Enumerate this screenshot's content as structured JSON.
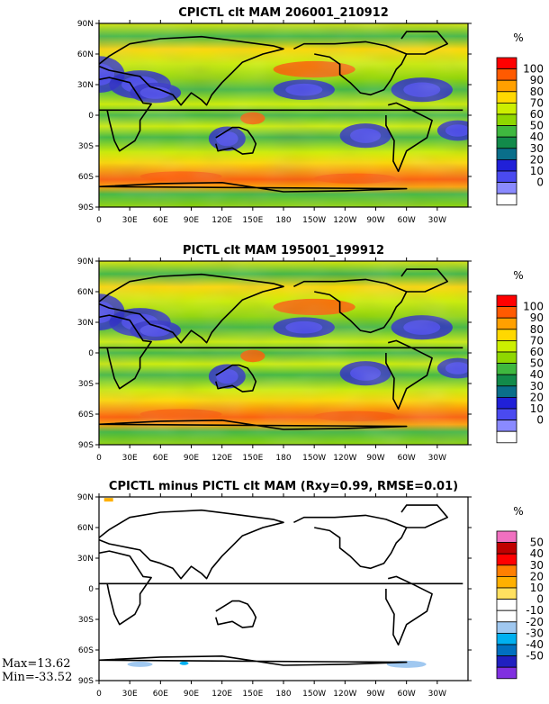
{
  "figure": {
    "stats_max": "Max=13.62",
    "stats_min": "Min=-33.52"
  },
  "chart_data": [
    {
      "type": "heatmap",
      "title": "CPICTL clt MAM 206001_210912",
      "unit": "%",
      "lon_ticks": [
        "0",
        "30E",
        "60E",
        "90E",
        "120E",
        "150E",
        "180",
        "150W",
        "120W",
        "90W",
        "60W",
        "30W"
      ],
      "lat_ticks": [
        "90N",
        "60N",
        "30N",
        "0",
        "30S",
        "60S",
        "90S"
      ],
      "ylim": [
        -90,
        90
      ],
      "xlim": [
        0,
        360
      ],
      "colorbar": {
        "levels": [
          "100",
          "90",
          "80",
          "70",
          "60",
          "50",
          "40",
          "30",
          "20",
          "10",
          "0"
        ],
        "colors": [
          "#ff0000",
          "#ff5a00",
          "#ffa000",
          "#ffd800",
          "#ccef00",
          "#8fd700",
          "#3fb83f",
          "#128a4a",
          "#0a6e8a",
          "#2020d8",
          "#4a4af0",
          "#8a8aff",
          "#ffffff"
        ]
      }
    },
    {
      "type": "heatmap",
      "title": "PICTL clt MAM 195001_199912",
      "unit": "%",
      "lon_ticks": [
        "0",
        "30E",
        "60E",
        "90E",
        "120E",
        "150E",
        "180",
        "150W",
        "120W",
        "90W",
        "60W",
        "30W"
      ],
      "lat_ticks": [
        "90N",
        "60N",
        "30N",
        "0",
        "30S",
        "60S",
        "90S"
      ],
      "ylim": [
        -90,
        90
      ],
      "xlim": [
        0,
        360
      ],
      "colorbar": {
        "levels": [
          "100",
          "90",
          "80",
          "70",
          "60",
          "50",
          "40",
          "30",
          "20",
          "10",
          "0"
        ],
        "colors": [
          "#ff0000",
          "#ff5a00",
          "#ffa000",
          "#ffd800",
          "#ccef00",
          "#8fd700",
          "#3fb83f",
          "#128a4a",
          "#0a6e8a",
          "#2020d8",
          "#4a4af0",
          "#8a8aff",
          "#ffffff"
        ]
      }
    },
    {
      "type": "heatmap",
      "title": "CPICTL minus PICTL clt MAM (Rxy=0.99, RMSE=0.01)",
      "unit": "%",
      "lon_ticks": [
        "0",
        "30E",
        "60E",
        "90E",
        "120E",
        "150E",
        "180",
        "150W",
        "120W",
        "90W",
        "60W",
        "30W"
      ],
      "lat_ticks": [
        "90N",
        "60N",
        "30N",
        "0",
        "30S",
        "60S",
        "90S"
      ],
      "ylim": [
        -90,
        90
      ],
      "xlim": [
        0,
        360
      ],
      "colorbar": {
        "levels": [
          "50",
          "40",
          "30",
          "20",
          "10",
          "0",
          "-10",
          "-20",
          "-30",
          "-40",
          "-50"
        ],
        "colors": [
          "#f070c0",
          "#c00000",
          "#ff0000",
          "#ff7f00",
          "#ffb000",
          "#ffe060",
          "#ffffff",
          "#ffffff",
          "#a0c8f0",
          "#00b0f0",
          "#0070c0",
          "#2020c0",
          "#8030e0"
        ]
      }
    }
  ]
}
